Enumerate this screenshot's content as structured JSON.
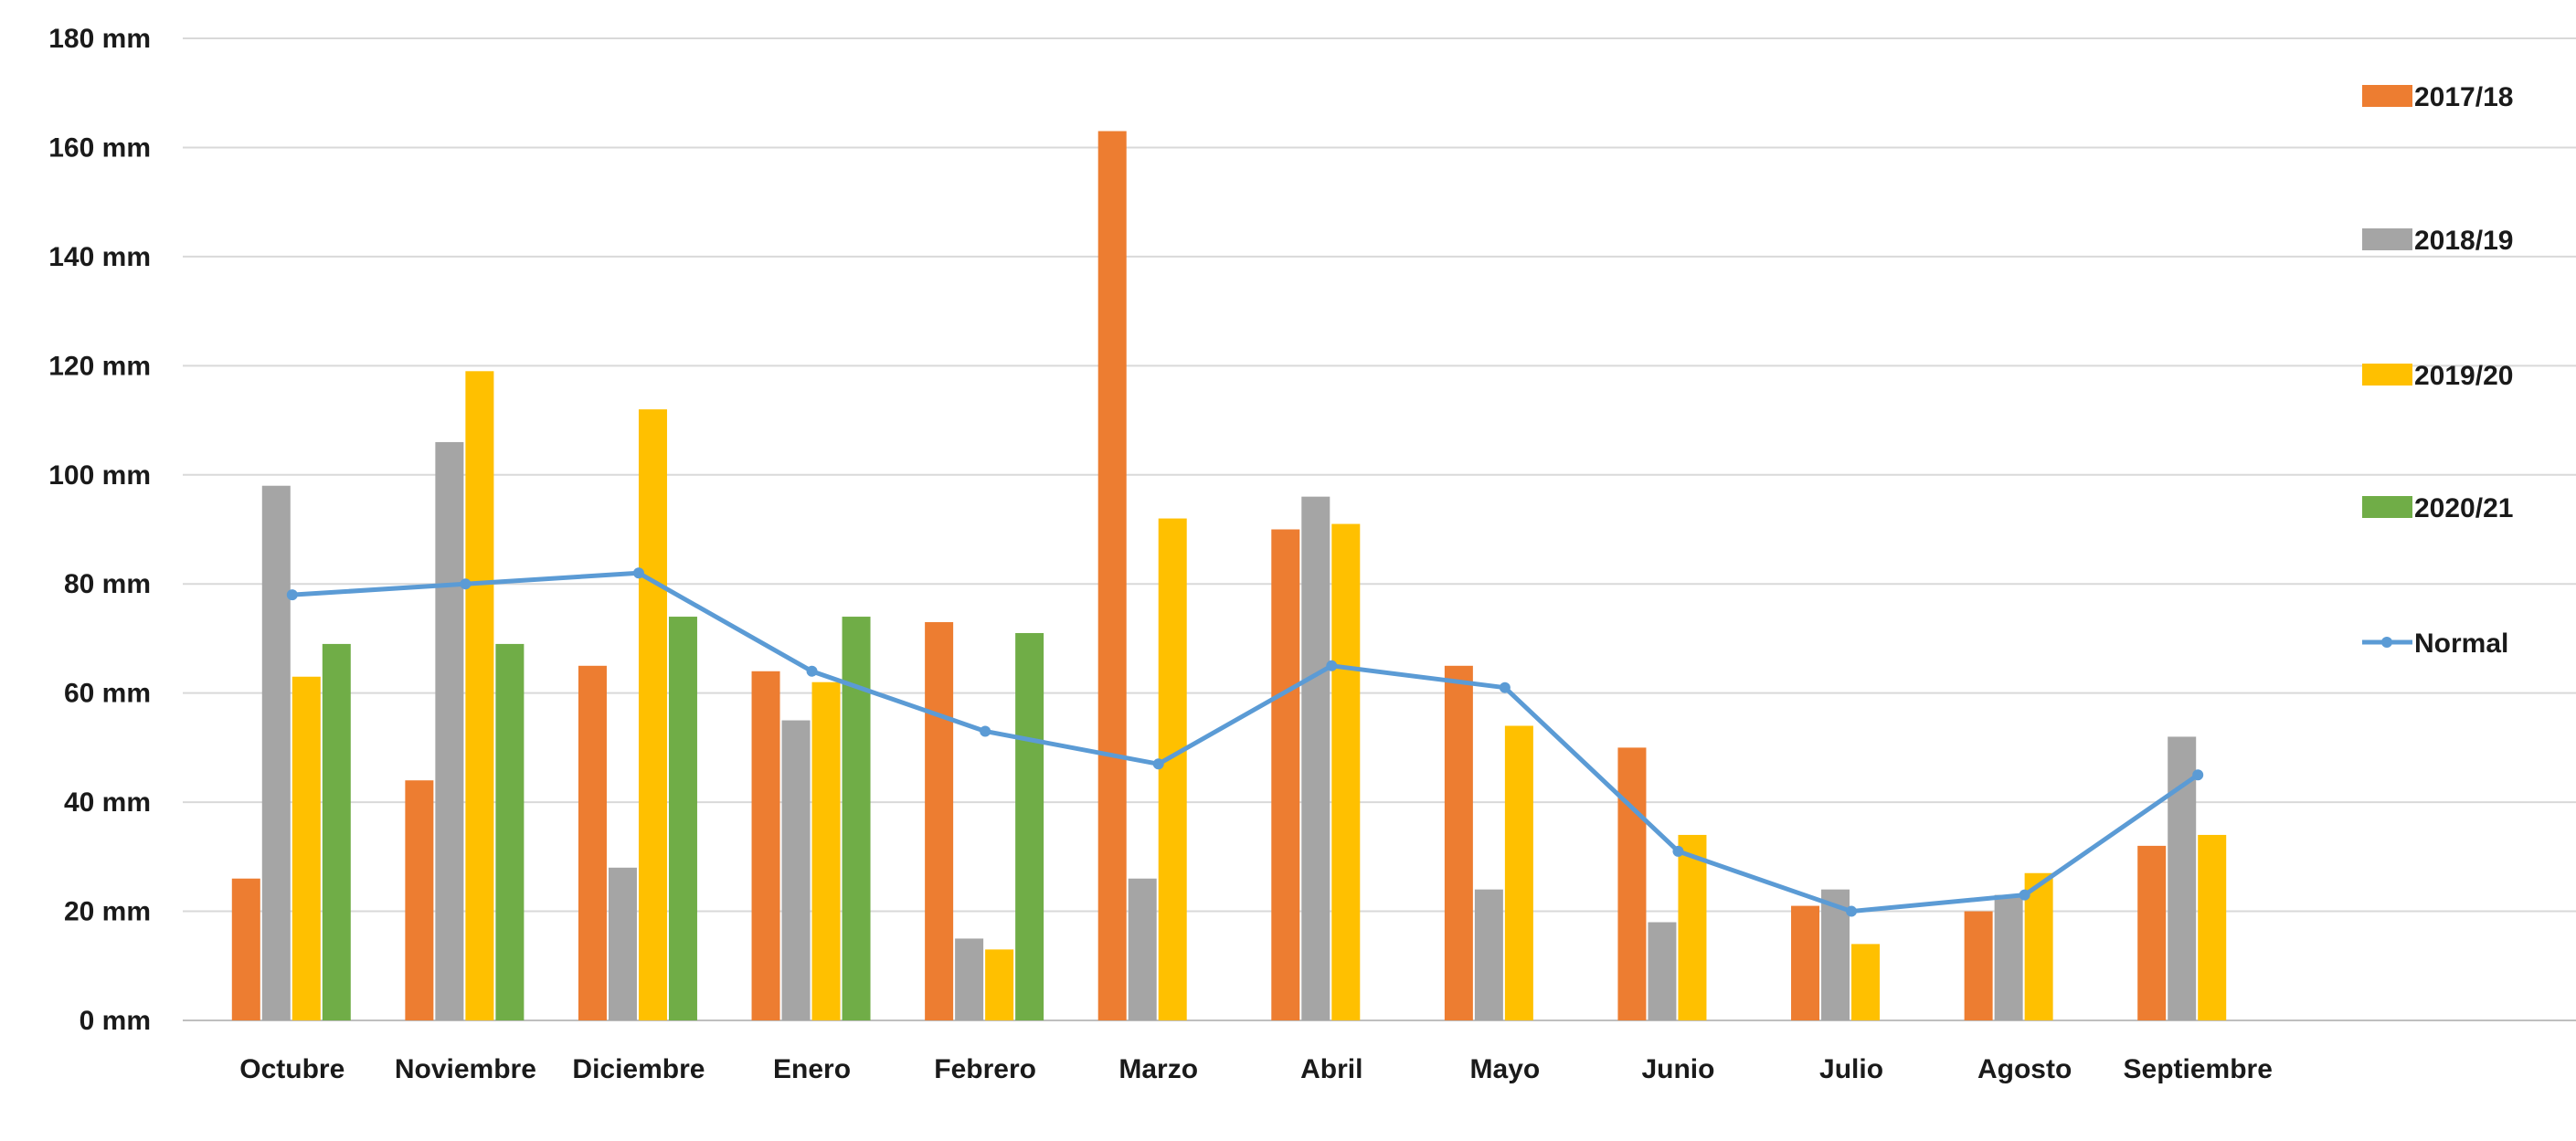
{
  "chart_data": {
    "type": "bar",
    "categories": [
      "Octubre",
      "Noviembre",
      "Diciembre",
      "Enero",
      "Febrero",
      "Marzo",
      "Abril",
      "Mayo",
      "Junio",
      "Julio",
      "Agosto",
      "Septiembre"
    ],
    "series": [
      {
        "name": "2017/18",
        "type": "bar",
        "color": "#ED7D31",
        "values": [
          26,
          44,
          65,
          64,
          73,
          163,
          90,
          65,
          50,
          21,
          20,
          32
        ]
      },
      {
        "name": "2018/19",
        "type": "bar",
        "color": "#A5A5A5",
        "values": [
          98,
          106,
          28,
          55,
          15,
          26,
          96,
          24,
          18,
          24,
          23,
          52
        ]
      },
      {
        "name": "2019/20",
        "type": "bar",
        "color": "#FFC000",
        "values": [
          63,
          119,
          112,
          62,
          13,
          92,
          91,
          54,
          34,
          14,
          27,
          34
        ]
      },
      {
        "name": "2020/21",
        "type": "bar",
        "color": "#70AD47",
        "values": [
          69,
          69,
          74,
          74,
          71,
          null,
          null,
          null,
          null,
          null,
          null,
          null
        ]
      },
      {
        "name": "Normal",
        "type": "line",
        "color": "#5B9BD5",
        "values": [
          78,
          80,
          82,
          64,
          53,
          47,
          65,
          61,
          31,
          20,
          23,
          45
        ]
      }
    ],
    "ylim": [
      0,
      180
    ],
    "ytick_values": [
      0,
      20,
      40,
      60,
      80,
      100,
      120,
      140,
      160,
      180
    ],
    "ytick_labels": [
      "0 mm",
      "20 mm",
      "40 mm",
      "60 mm",
      "80 mm",
      "100 mm",
      "120 mm",
      "140 mm",
      "160 mm",
      "180 mm"
    ],
    "grid": true,
    "legend_position": "right"
  }
}
